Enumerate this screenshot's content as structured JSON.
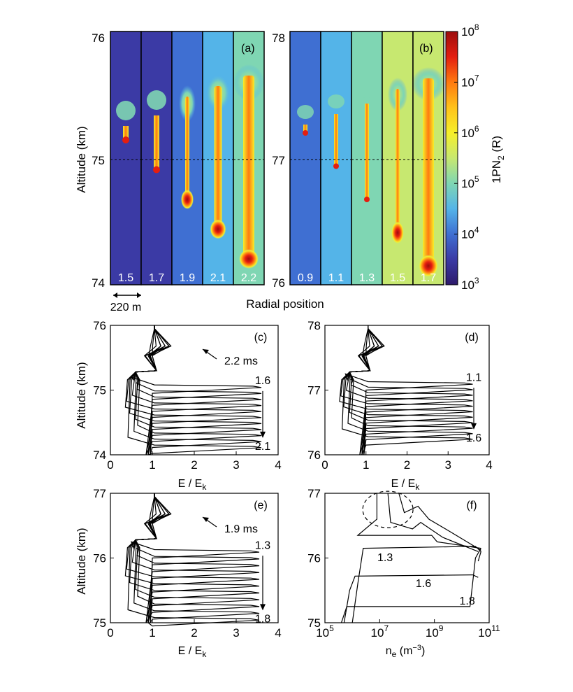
{
  "colors": {
    "frame": "#000000",
    "colormap": [
      "#2e1a6b",
      "#3b3aa5",
      "#3f6fd2",
      "#54b4e8",
      "#7fd6b3",
      "#c7e870",
      "#f6ef2a",
      "#ffc21a",
      "#ff7a10",
      "#e41e10",
      "#9c0d0d"
    ]
  },
  "chart_data": [
    {
      "id": "a",
      "type": "heatmap",
      "panel_label": "(a)",
      "ylabel": "Altitude (km)",
      "xlabel": "Radial position",
      "scale_bar_label": "220 m",
      "y_ticks": [
        "74",
        "75",
        "76"
      ],
      "ylim": [
        74,
        76
      ],
      "times": [
        "1.5",
        "1.7",
        "1.9",
        "2.1",
        "2.2"
      ]
    },
    {
      "id": "b",
      "type": "heatmap",
      "panel_label": "(b)",
      "y_ticks": [
        "76",
        "77",
        "78"
      ],
      "ylim": [
        76,
        78
      ],
      "times": [
        "0.9",
        "1.1",
        "1.3",
        "1.5",
        "1.7"
      ],
      "colorbar": {
        "label_main": "1PN",
        "label_sub": "2",
        "label_unit": " (R)",
        "scale": "log",
        "range": [
          1000,
          100000000
        ],
        "tick_base": "10",
        "tick_exps": [
          "3",
          "4",
          "5",
          "6",
          "7",
          "8"
        ]
      }
    },
    {
      "id": "c",
      "type": "line",
      "panel_label": "(c)",
      "ylabel": "Altitude (km)",
      "xlabel_main": "E / E",
      "xlabel_sub": "k",
      "xlim": [
        0,
        4
      ],
      "ylim": [
        74,
        76
      ],
      "x_ticks": [
        "0",
        "1",
        "2",
        "3",
        "4"
      ],
      "y_ticks": [
        "74",
        "75",
        "76"
      ],
      "ann_time": "2.2 ms",
      "ann_start": "1.6",
      "ann_end": "2.1",
      "steps": 11,
      "front_top": 75.05,
      "front_bottom": 74.12,
      "peak_x": 3.6,
      "osc_y": 75.28,
      "head_top": 75.95,
      "min_x": 0.5
    },
    {
      "id": "d",
      "type": "line",
      "panel_label": "(d)",
      "xlabel_main": "E / E",
      "xlabel_sub": "k",
      "xlim": [
        0,
        4
      ],
      "ylim": [
        76,
        78
      ],
      "x_ticks": [
        "0",
        "1",
        "2",
        "3",
        "4"
      ],
      "y_ticks": [
        "76",
        "77",
        "78"
      ],
      "ann_start": "1.1",
      "ann_end": "1.6",
      "steps": 11,
      "front_top": 77.1,
      "front_bottom": 76.25,
      "peak_x": 3.6,
      "osc_y": 77.28,
      "head_top": 77.95,
      "min_x": 0.5
    },
    {
      "id": "e",
      "type": "line",
      "panel_label": "(e)",
      "ylabel": "Altitude (km)",
      "xlabel_main": "E / E",
      "xlabel_sub": "k",
      "xlim": [
        0,
        4
      ],
      "ylim": [
        75,
        77
      ],
      "x_ticks": [
        "0",
        "1",
        "2",
        "3",
        "4"
      ],
      "y_ticks": [
        "75",
        "76",
        "77"
      ],
      "ann_time": "1.9 ms",
      "ann_start": "1.3",
      "ann_end": "1.8",
      "steps": 11,
      "front_top": 76.1,
      "front_bottom": 75.05,
      "peak_x": 3.55,
      "osc_y": 76.28,
      "head_top": 76.95,
      "min_x": 0.5
    },
    {
      "id": "f",
      "type": "line",
      "panel_label": "(f)",
      "xlabel_main": "n",
      "xlabel_sub": "e",
      "xlabel_unit": " (m",
      "xlabel_sup": "−3",
      "xlabel_close": ")",
      "x_scale": "log",
      "xlim": [
        100000,
        100000000000
      ],
      "ylim": [
        75,
        77
      ],
      "x_tick_base": "10",
      "x_tick_exps": [
        "5",
        "7",
        "9",
        "11"
      ],
      "y_ticks": [
        "75",
        "76",
        "77"
      ],
      "curve_labels": [
        "1.3",
        "1.6",
        "1.8"
      ],
      "series": [
        {
          "name": "1.3",
          "points": [
            [
              6.0,
              75.0
            ],
            [
              6.2,
              75.6
            ],
            [
              6.4,
              76.15
            ],
            [
              10.5,
              76.18
            ],
            [
              10.7,
              76.1
            ],
            [
              10.6,
              75.95
            ]
          ]
        },
        {
          "name": "1.6",
          "points": [
            [
              5.7,
              75.0
            ],
            [
              5.9,
              75.5
            ],
            [
              6.1,
              75.72
            ],
            [
              10.4,
              75.74
            ],
            [
              10.6,
              75.7
            ]
          ]
        },
        {
          "name": "1.8",
          "points": [
            [
              5.6,
              75.0
            ],
            [
              5.8,
              75.25
            ],
            [
              10.3,
              75.25
            ],
            [
              10.5,
              76.0
            ],
            [
              10.7,
              76.15
            ]
          ]
        }
      ]
    }
  ]
}
